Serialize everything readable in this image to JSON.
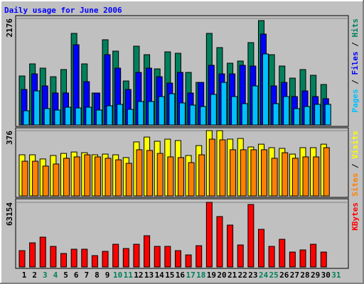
{
  "chart_data": [
    {
      "type": "bar",
      "title": "Daily usage for June 2006",
      "title_color": "#0000ff",
      "ylim": [
        0,
        2176
      ],
      "yticks": [
        2176
      ],
      "legend_separator": " / ",
      "series": [
        {
          "name": "Hits",
          "color": "#00805c",
          "values": [
            1001,
            1248,
            1161,
            986,
            1132,
            1871,
            1248,
            653,
            1741,
            1509,
            899,
            1610,
            1436,
            1146,
            1494,
            1465,
            1074,
            870,
            1871,
            1581,
            1262,
            1306,
            1683,
            2133,
            1436,
            1204,
            957,
            1132,
            1015,
            827,
            0
          ]
        },
        {
          "name": "Files",
          "color": "#0000ff",
          "values": [
            725,
            1044,
            798,
            653,
            653,
            1639,
            885,
            653,
            1436,
            1161,
            725,
            1074,
            1161,
            986,
            856,
            1074,
            653,
            870,
            1219,
            1044,
            1044,
            1219,
            1204,
            1857,
            798,
            870,
            580,
            696,
            580,
            537,
            0
          ]
        },
        {
          "name": "Pages",
          "color": "#00c0ff",
          "values": [
            290,
            696,
            334,
            305,
            363,
            348,
            363,
            305,
            392,
            421,
            319,
            479,
            479,
            580,
            638,
            450,
            406,
            377,
            624,
            870,
            580,
            435,
            798,
            1451,
            435,
            580,
            334,
            377,
            421,
            421,
            0
          ]
        }
      ]
    },
    {
      "type": "bar",
      "ylim": [
        0,
        376
      ],
      "yticks": [
        376
      ],
      "legend_separator": " / ",
      "series": [
        {
          "name": "Visits",
          "color": "#ffff00",
          "values": [
            237,
            237,
            213,
            233,
            245,
            253,
            249,
            237,
            241,
            237,
            221,
            311,
            339,
            315,
            327,
            319,
            233,
            290,
            376,
            376,
            327,
            331,
            282,
            298,
            278,
            274,
            241,
            278,
            278,
            298,
            0
          ]
        },
        {
          "name": "Sites",
          "color": "#ff8000",
          "values": [
            200,
            200,
            172,
            184,
            217,
            225,
            237,
            225,
            217,
            208,
            188,
            266,
            262,
            245,
            225,
            221,
            192,
            237,
            327,
            323,
            266,
            266,
            266,
            266,
            217,
            249,
            217,
            225,
            225,
            278,
            0
          ]
        }
      ]
    },
    {
      "type": "bar",
      "ylim": [
        0,
        63154
      ],
      "yticks": [
        63154
      ],
      "categories": [
        "1",
        "2",
        "3",
        "4",
        "5",
        "6",
        "7",
        "8",
        "9",
        "10",
        "11",
        "12",
        "13",
        "14",
        "15",
        "16",
        "17",
        "18",
        "19",
        "20",
        "21",
        "22",
        "23",
        "24",
        "25",
        "26",
        "27",
        "28",
        "29",
        "30",
        "31"
      ],
      "category_colors": [
        "#000000",
        "#000000",
        "#00805c",
        "#00805c",
        "#000000",
        "#000000",
        "#000000",
        "#000000",
        "#000000",
        "#00805c",
        "#00805c",
        "#000000",
        "#000000",
        "#000000",
        "#000000",
        "#000000",
        "#00805c",
        "#00805c",
        "#000000",
        "#000000",
        "#000000",
        "#000000",
        "#000000",
        "#00805c",
        "#00805c",
        "#000000",
        "#000000",
        "#000000",
        "#000000",
        "#000000",
        "#00805c"
      ],
      "series": [
        {
          "name": "KBytes",
          "color": "#ff0000",
          "values": [
            15962,
            23596,
            29148,
            20126,
            13186,
            17350,
            17350,
            11104,
            15268,
            22208,
            18044,
            22208,
            30536,
            20126,
            20126,
            15962,
            11798,
            20820,
            63154,
            49274,
            40946,
            21514,
            61072,
            36782,
            20126,
            27066,
            14574,
            16656,
            22208,
            14574,
            0
          ]
        }
      ]
    }
  ]
}
